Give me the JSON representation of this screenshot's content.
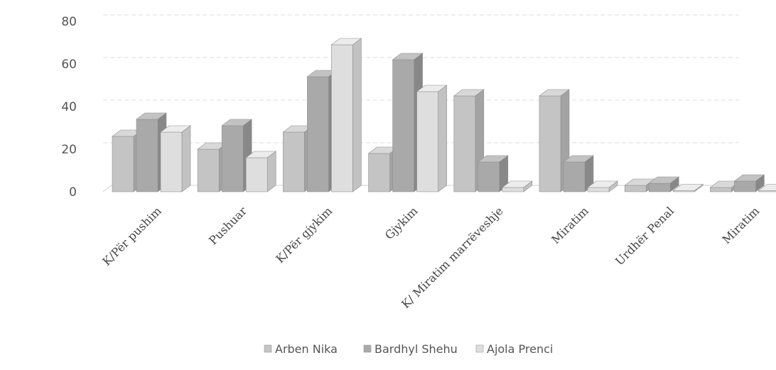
{
  "chart_data": {
    "type": "bar",
    "style": "3d-clustered-column",
    "categories": [
      "K/Për pushim",
      "Pushuar",
      "K/Për gjykim",
      "Gjykim",
      "K/ Miratim marrëveshje",
      "Miratim",
      "Urdhër  Penal",
      "Miratim"
    ],
    "series": [
      {
        "name": "Arben Nika",
        "values": [
          26,
          20,
          28,
          18,
          45,
          45,
          3,
          2
        ]
      },
      {
        "name": "Bardhyl Shehu",
        "values": [
          34,
          31,
          54,
          62,
          14,
          14,
          4,
          5
        ]
      },
      {
        "name": "Ajola Prenci",
        "values": [
          28,
          16,
          69,
          47,
          2,
          2,
          0.5,
          0.5
        ]
      }
    ],
    "yticks": [
      0,
      20,
      40,
      60,
      80
    ],
    "ylim": [
      0,
      80
    ],
    "grid": true,
    "legend_position": "bottom",
    "colors": {
      "Arben Nika": {
        "front": "#c4c4c4",
        "side": "#a3a3a3",
        "top": "#d8d8d8"
      },
      "Bardhyl Shehu": {
        "front": "#a9a9a9",
        "side": "#888888",
        "top": "#c2c2c2"
      },
      "Ajola Prenci": {
        "front": "#dedede",
        "side": "#c2c2c2",
        "top": "#ececec"
      }
    }
  }
}
